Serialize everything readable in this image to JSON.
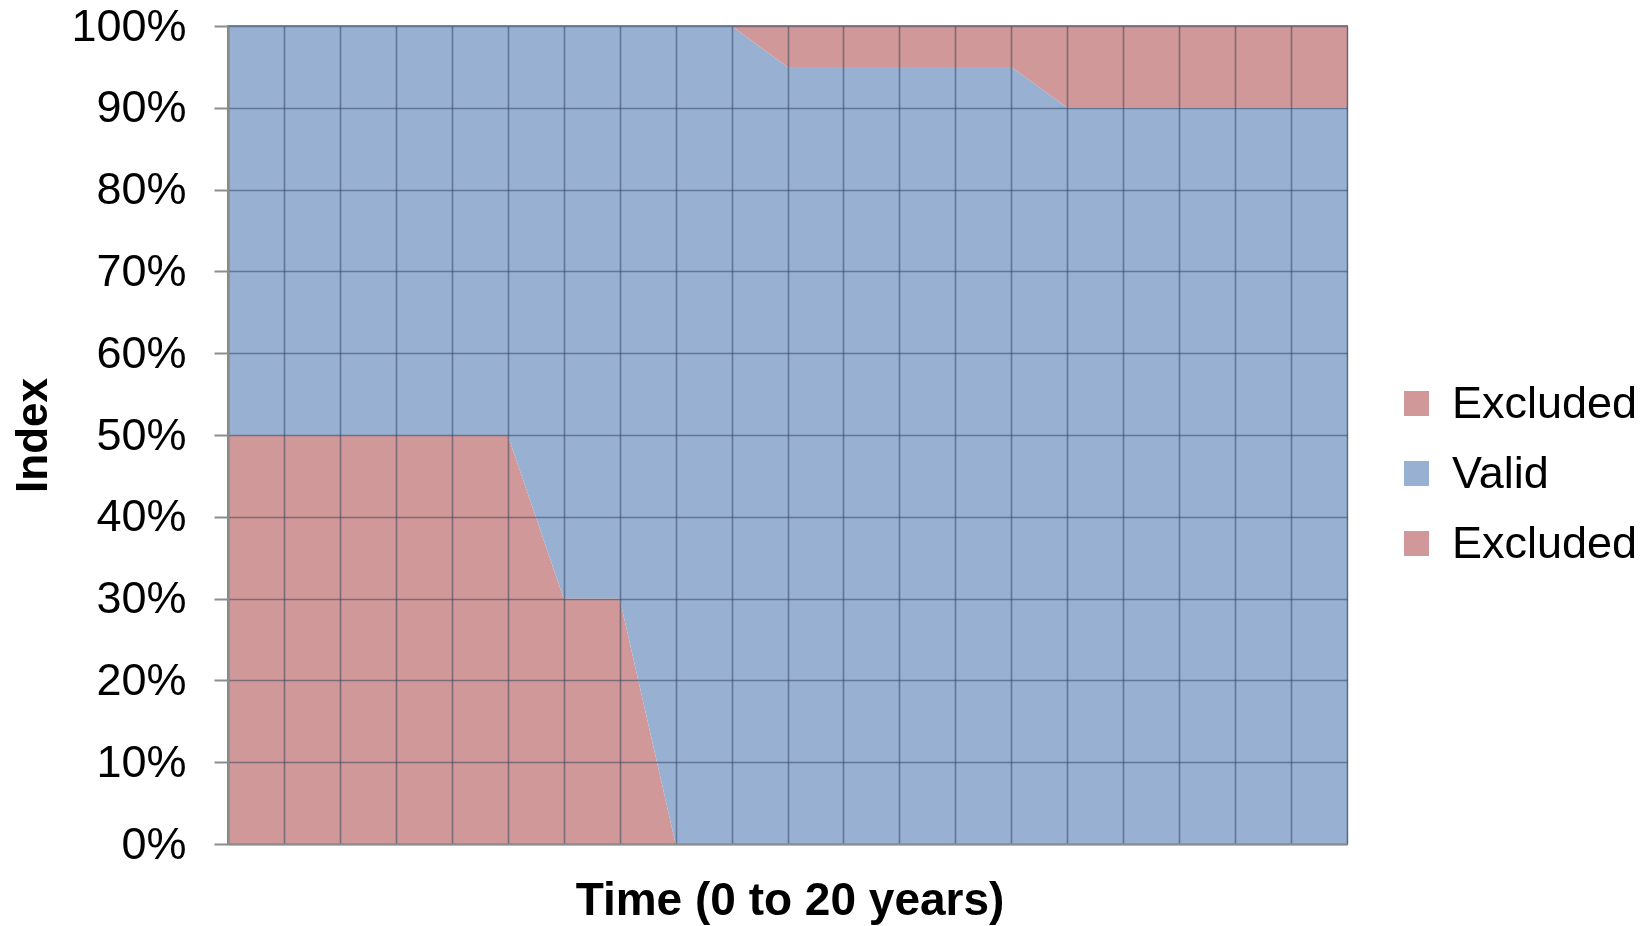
{
  "chart_data": {
    "type": "area",
    "stacked": true,
    "xlabel": "Time (0 to 20 years)",
    "ylabel": "Index",
    "categories": [
      null,
      null,
      null,
      null,
      null,
      null,
      null,
      null,
      null,
      null,
      null,
      null,
      null,
      null,
      null,
      null,
      null,
      null,
      null,
      null,
      null
    ],
    "series": [
      {
        "name": "Excluded",
        "color": "#d09898",
        "values": [
          50,
          50,
          50,
          50,
          50,
          50,
          30,
          30,
          0,
          0,
          0,
          0,
          0,
          0,
          0,
          0,
          0,
          0,
          0,
          0,
          0
        ]
      },
      {
        "name": "Valid",
        "color": "#98b0d2",
        "values": [
          50,
          50,
          50,
          50,
          50,
          50,
          70,
          70,
          100,
          100,
          95,
          95,
          95,
          95,
          95,
          90,
          90,
          90,
          90,
          90,
          90
        ]
      },
      {
        "name": "Excluded",
        "color": "#d09898",
        "values": [
          0,
          0,
          0,
          0,
          0,
          0,
          0,
          0,
          0,
          0,
          5,
          5,
          5,
          5,
          5,
          10,
          10,
          10,
          10,
          10,
          10
        ]
      }
    ],
    "ylim": [
      0,
      100
    ],
    "yticks": [
      {
        "value": 0,
        "label": "0%"
      },
      {
        "value": 10,
        "label": "10%"
      },
      {
        "value": 20,
        "label": "20%"
      },
      {
        "value": 30,
        "label": "30%"
      },
      {
        "value": 40,
        "label": "40%"
      },
      {
        "value": 50,
        "label": "50%"
      },
      {
        "value": 60,
        "label": "60%"
      },
      {
        "value": 70,
        "label": "70%"
      },
      {
        "value": 80,
        "label": "80%"
      },
      {
        "value": 90,
        "label": "90%"
      },
      {
        "value": 100,
        "label": "100%"
      }
    ],
    "tick_labels": "y",
    "grid": true,
    "legend": "right"
  }
}
